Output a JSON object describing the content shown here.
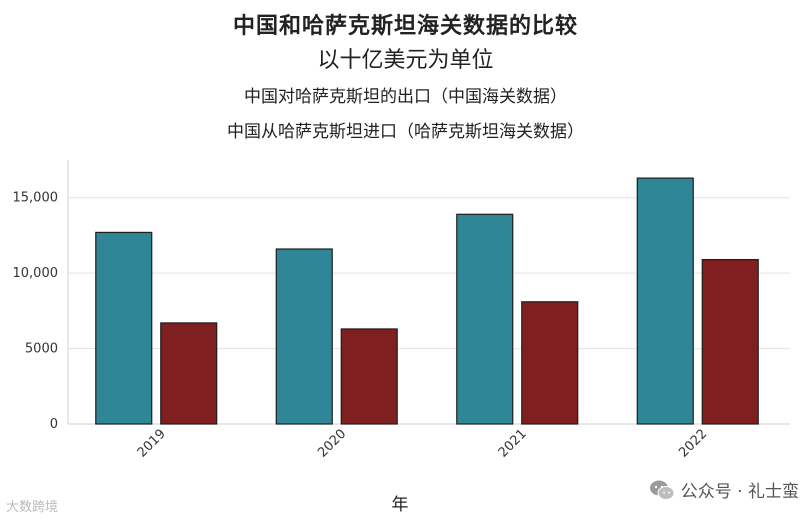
{
  "chart_data": {
    "type": "bar",
    "title": "中国和哈萨克斯坦海关数据的比较",
    "subtitle": "以十亿美元为单位",
    "xlabel": "年",
    "ylabel": "",
    "categories": [
      "2019",
      "2020",
      "2021",
      "2022"
    ],
    "series": [
      {
        "name": "中国对哈萨克斯坦的出口（中国海关数据）",
        "values": [
          12700,
          11600,
          13900,
          16300
        ],
        "color": "#2e8696"
      },
      {
        "name": "中国从哈萨克斯坦进口（哈萨克斯坦海关数据）",
        "values": [
          6700,
          6300,
          8100,
          10900
        ],
        "color": "#7f1f1f"
      }
    ],
    "ylim": [
      0,
      17500
    ],
    "yticks": [
      0,
      5000,
      10000,
      15000
    ],
    "ytick_labels": [
      "0",
      "5000",
      "10,000",
      "15,000"
    ],
    "grid": true,
    "legend": "top-center"
  },
  "watermarks": {
    "left": "大数跨境",
    "right": "公众号 · 礼士蛮",
    "right_icon": "wechat-icon"
  }
}
